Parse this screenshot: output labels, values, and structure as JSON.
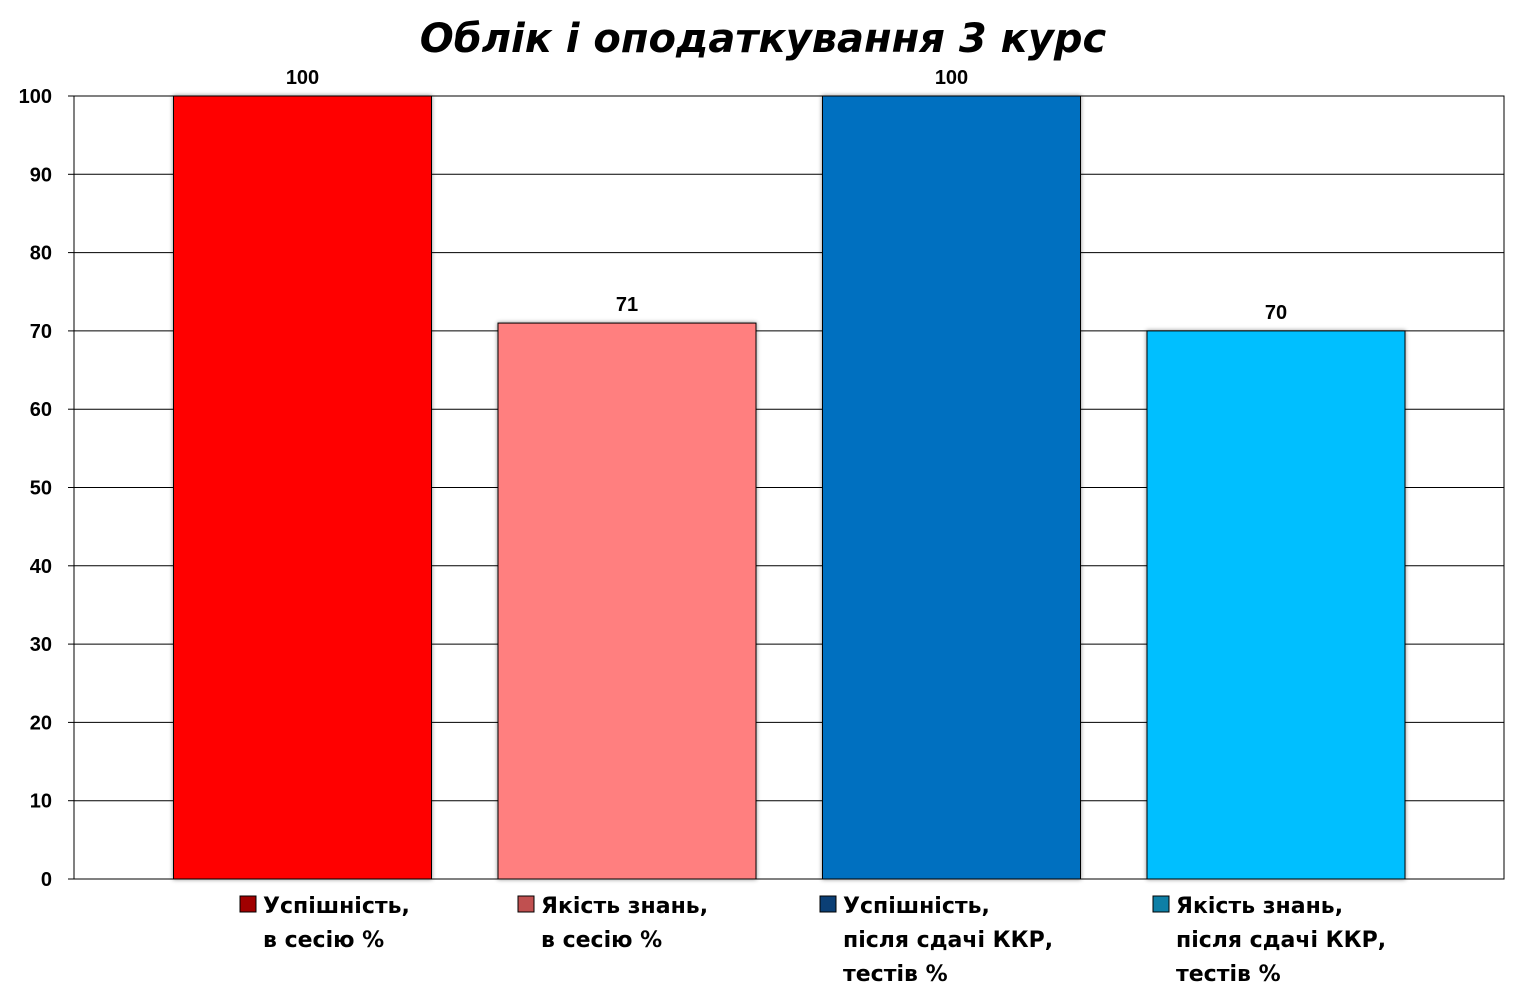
{
  "chart_data": {
    "type": "bar",
    "title": "Облік і оподаткування 3 курс",
    "xlabel": "",
    "ylabel": "",
    "ylim": [
      0,
      100
    ],
    "yticks": [
      0,
      10,
      20,
      30,
      40,
      50,
      60,
      70,
      80,
      90,
      100
    ],
    "grid": true,
    "legend_position": "bottom",
    "series": [
      {
        "name": "Успішність, в сесію %",
        "legend_lines": [
          "Успішність,",
          "в сесію %"
        ],
        "value": 100,
        "color": "#ff0000",
        "legend_color": "#a00000"
      },
      {
        "name": "Якість знань, в сесію %",
        "legend_lines": [
          "Якість знань,",
          "в сесію %"
        ],
        "value": 71,
        "color": "#ff7f7f",
        "legend_color": "#c05050"
      },
      {
        "name": "Успішність, після сдачі ККР, тестів %",
        "legend_lines": [
          "Успішність,",
          "після сдачі ККР,",
          "тестів %"
        ],
        "value": 100,
        "color": "#0070c0",
        "legend_color": "#0b3f75"
      },
      {
        "name": "Якість знань, після сдачі ККР, тестів %",
        "legend_lines": [
          "Якість знань,",
          "після сдачі ККР,",
          "тестів %"
        ],
        "value": 70,
        "color": "#00bfff",
        "legend_color": "#0e7fa6"
      }
    ]
  }
}
